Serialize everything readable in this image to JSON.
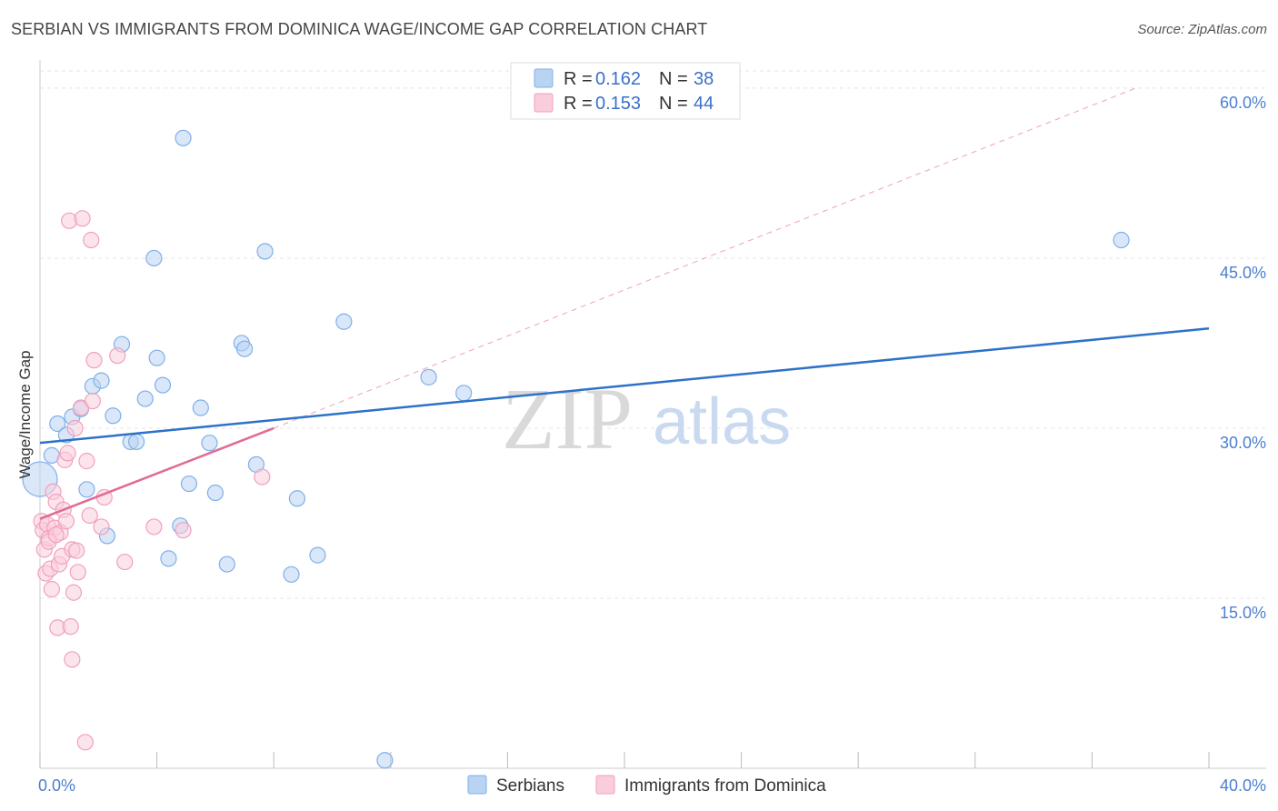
{
  "title": "SERBIAN VS IMMIGRANTS FROM DOMINICA WAGE/INCOME GAP CORRELATION CHART",
  "source": "Source: ZipAtlas.com",
  "watermark": {
    "zip": "ZIP",
    "atlas": "atlas"
  },
  "chart_data": {
    "type": "scatter",
    "xlabel": "",
    "ylabel": "Wage/Income Gap",
    "xlim": [
      0,
      40
    ],
    "ylim": [
      0,
      62
    ],
    "x_tick_labels": [
      "0.0%",
      "40.0%"
    ],
    "y_ticks": [
      15,
      30,
      45,
      60
    ],
    "y_tick_labels": [
      "15.0%",
      "30.0%",
      "45.0%",
      "60.0%"
    ],
    "grid": true,
    "legend": {
      "placement": "top-center",
      "entries": [
        {
          "r_label": "R =",
          "r_value": "0.162",
          "n_label": "N =",
          "n_value": "38"
        },
        {
          "r_label": "R =",
          "r_value": "0.153",
          "n_label": "N =",
          "n_value": "44"
        }
      ]
    },
    "series": [
      {
        "name": "Serbians",
        "color": "#7fb0ea",
        "fill": "#b9d3f3",
        "line_color": "#2d72c8",
        "trend": {
          "x": [
            0,
            40
          ],
          "y": [
            28.7,
            38.8
          ],
          "dashed_extension": false
        },
        "points": [
          [
            0.0,
            25.5
          ],
          [
            0.4,
            27.6
          ],
          [
            0.6,
            30.4
          ],
          [
            0.9,
            29.4
          ],
          [
            1.1,
            31.0
          ],
          [
            1.4,
            31.7
          ],
          [
            1.6,
            24.6
          ],
          [
            1.8,
            33.7
          ],
          [
            2.1,
            34.2
          ],
          [
            2.3,
            20.5
          ],
          [
            2.5,
            31.1
          ],
          [
            2.8,
            37.4
          ],
          [
            3.1,
            28.8
          ],
          [
            3.3,
            28.8
          ],
          [
            3.6,
            32.6
          ],
          [
            3.9,
            45.0
          ],
          [
            4.0,
            36.2
          ],
          [
            4.2,
            33.8
          ],
          [
            4.4,
            18.5
          ],
          [
            4.8,
            21.4
          ],
          [
            4.9,
            55.6
          ],
          [
            5.1,
            25.1
          ],
          [
            5.5,
            31.8
          ],
          [
            5.8,
            28.7
          ],
          [
            6.0,
            24.3
          ],
          [
            6.4,
            18.0
          ],
          [
            6.9,
            37.5
          ],
          [
            7.0,
            37.0
          ],
          [
            7.4,
            26.8
          ],
          [
            7.7,
            45.6
          ],
          [
            8.6,
            17.1
          ],
          [
            8.8,
            23.8
          ],
          [
            9.5,
            18.8
          ],
          [
            10.4,
            39.4
          ],
          [
            11.8,
            0.7
          ],
          [
            13.3,
            34.5
          ],
          [
            14.5,
            33.1
          ],
          [
            37.0,
            46.6
          ]
        ]
      },
      {
        "name": "Immigrants from Dominica",
        "color": "#f2a0bb",
        "fill": "#f9cddc",
        "line_color": "#e06b94",
        "trend": {
          "x": [
            0,
            8
          ],
          "y": [
            22.0,
            30.0
          ],
          "dashed_extension": true,
          "ext_to": [
            37.5,
            60.0
          ]
        },
        "points": [
          [
            0.05,
            21.8
          ],
          [
            0.1,
            21.0
          ],
          [
            0.15,
            19.3
          ],
          [
            0.2,
            17.2
          ],
          [
            0.25,
            21.5
          ],
          [
            0.3,
            20.3
          ],
          [
            0.35,
            17.6
          ],
          [
            0.4,
            15.8
          ],
          [
            0.45,
            24.4
          ],
          [
            0.5,
            21.2
          ],
          [
            0.55,
            23.5
          ],
          [
            0.6,
            12.4
          ],
          [
            0.65,
            18.0
          ],
          [
            0.7,
            20.8
          ],
          [
            0.75,
            18.7
          ],
          [
            0.8,
            22.8
          ],
          [
            0.85,
            27.2
          ],
          [
            0.9,
            21.8
          ],
          [
            0.95,
            27.8
          ],
          [
            1.0,
            48.3
          ],
          [
            1.05,
            12.5
          ],
          [
            1.1,
            19.3
          ],
          [
            1.15,
            15.5
          ],
          [
            1.2,
            30.0
          ],
          [
            1.25,
            19.2
          ],
          [
            1.1,
            9.6
          ],
          [
            1.3,
            17.3
          ],
          [
            1.4,
            31.8
          ],
          [
            1.45,
            48.5
          ],
          [
            1.55,
            2.3
          ],
          [
            1.6,
            27.1
          ],
          [
            1.7,
            22.3
          ],
          [
            1.75,
            46.6
          ],
          [
            1.8,
            32.4
          ],
          [
            1.85,
            36.0
          ],
          [
            2.1,
            21.3
          ],
          [
            2.2,
            23.9
          ],
          [
            2.65,
            36.4
          ],
          [
            2.9,
            18.2
          ],
          [
            3.9,
            21.3
          ],
          [
            4.9,
            21.0
          ],
          [
            7.6,
            25.7
          ],
          [
            0.3,
            20.0
          ],
          [
            0.55,
            20.6
          ]
        ]
      }
    ]
  },
  "bottom_legend": [
    {
      "label": "Serbians"
    },
    {
      "label": "Immigrants from Dominica"
    }
  ]
}
